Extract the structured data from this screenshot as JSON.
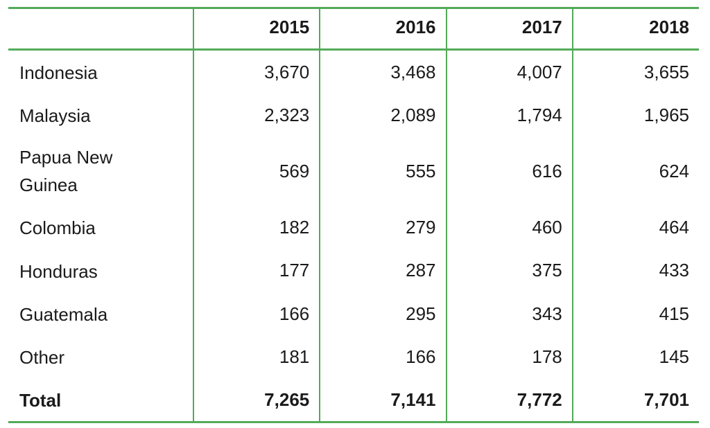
{
  "page": {
    "background": "#ffffff"
  },
  "table": {
    "border_color": "#52aa58",
    "text_color": "#1a1a1a",
    "columns": [
      "",
      "2015",
      "2016",
      "2017",
      "2018"
    ],
    "rows": [
      {
        "label": "Indonesia",
        "values": [
          "3,670",
          "3,468",
          "4,007",
          "3,655"
        ],
        "bold": false
      },
      {
        "label": "Malaysia",
        "values": [
          "2,323",
          "2,089",
          "1,794",
          "1,965"
        ],
        "bold": false
      },
      {
        "label": "Papua New Guinea",
        "values": [
          "569",
          "555",
          "616",
          "624"
        ],
        "bold": false
      },
      {
        "label": "Colombia",
        "values": [
          "182",
          "279",
          "460",
          "464"
        ],
        "bold": false
      },
      {
        "label": "Honduras",
        "values": [
          "177",
          "287",
          "375",
          "433"
        ],
        "bold": false
      },
      {
        "label": "Guatemala",
        "values": [
          "166",
          "295",
          "343",
          "415"
        ],
        "bold": false
      },
      {
        "label": "Other",
        "values": [
          "181",
          "166",
          "178",
          "145"
        ],
        "bold": false
      },
      {
        "label": "Total",
        "values": [
          "7,265",
          "7,141",
          "7,772",
          "7,701"
        ],
        "bold": true
      }
    ]
  },
  "chart_data": {
    "type": "table",
    "categories": [
      "2015",
      "2016",
      "2017",
      "2018"
    ],
    "series": [
      {
        "name": "Indonesia",
        "values": [
          3670,
          3468,
          4007,
          3655
        ]
      },
      {
        "name": "Malaysia",
        "values": [
          2323,
          2089,
          1794,
          1965
        ]
      },
      {
        "name": "Papua New Guinea",
        "values": [
          569,
          555,
          616,
          624
        ]
      },
      {
        "name": "Colombia",
        "values": [
          182,
          279,
          460,
          464
        ]
      },
      {
        "name": "Honduras",
        "values": [
          177,
          287,
          375,
          433
        ]
      },
      {
        "name": "Guatemala",
        "values": [
          166,
          295,
          343,
          415
        ]
      },
      {
        "name": "Other",
        "values": [
          181,
          166,
          178,
          145
        ]
      },
      {
        "name": "Total",
        "values": [
          7265,
          7141,
          7772,
          7701
        ]
      }
    ],
    "layout": {
      "header_row_bold": true,
      "total_row_bold": true,
      "gridlines": "vertical-between-columns-and-horizontal-top-header-bottom",
      "value_alignment": "right",
      "label_alignment": "left"
    }
  }
}
